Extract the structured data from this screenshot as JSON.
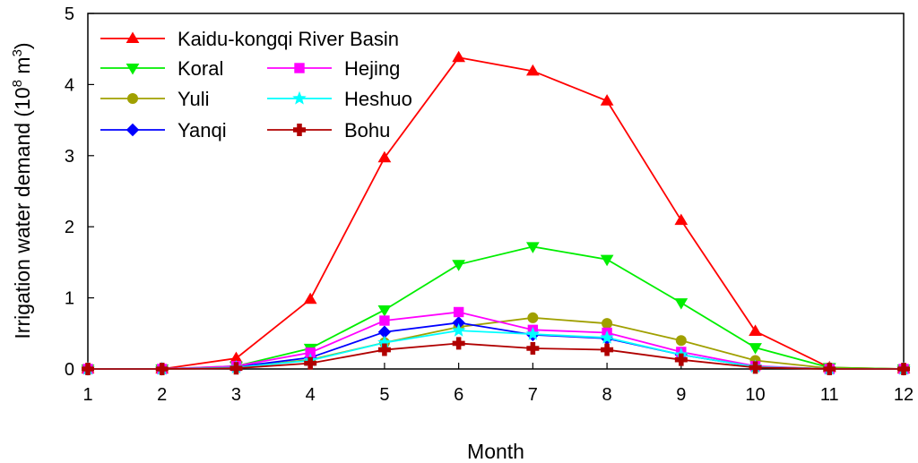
{
  "chart_data": {
    "type": "line",
    "title": "",
    "xlabel": "Month",
    "ylabel_main": "Irrigation water demand (10",
    "ylabel_exp1": "8",
    "ylabel_unit": " m",
    "ylabel_exp2": "3",
    "ylabel_close": ")",
    "xlim": [
      1,
      12
    ],
    "ylim": [
      0,
      5
    ],
    "x_ticks": [
      1,
      2,
      3,
      4,
      5,
      6,
      7,
      8,
      9,
      10,
      11,
      12
    ],
    "y_ticks": [
      0,
      1,
      2,
      3,
      4,
      5
    ],
    "x": [
      1,
      2,
      3,
      4,
      5,
      6,
      7,
      8,
      9,
      10,
      11,
      12
    ],
    "legend_position": "top-left",
    "series": [
      {
        "name": "Kaidu-kongqi River Basin",
        "color": "#ff0000",
        "marker": "triangle-up",
        "values": [
          0,
          0,
          0.15,
          0.98,
          2.97,
          4.38,
          4.19,
          3.77,
          2.09,
          0.53,
          0.02,
          0
        ]
      },
      {
        "name": "Koral",
        "color": "#00ee00",
        "marker": "triangle-down",
        "values": [
          0,
          0,
          0.04,
          0.29,
          0.83,
          1.47,
          1.72,
          1.54,
          0.93,
          0.3,
          0.02,
          0
        ]
      },
      {
        "name": "Yuli",
        "color": "#a0a000",
        "marker": "circle",
        "values": [
          0,
          0,
          0.02,
          0.13,
          0.37,
          0.59,
          0.72,
          0.64,
          0.4,
          0.12,
          0.01,
          0
        ]
      },
      {
        "name": "Yanqi",
        "color": "#0000ff",
        "marker": "diamond",
        "values": [
          0,
          0,
          0.03,
          0.16,
          0.52,
          0.65,
          0.48,
          0.43,
          0.2,
          0.03,
          0,
          0
        ]
      },
      {
        "name": "Hejing",
        "color": "#ff00ff",
        "marker": "square",
        "values": [
          0,
          0,
          0.04,
          0.23,
          0.68,
          0.8,
          0.55,
          0.51,
          0.24,
          0.04,
          0,
          0
        ]
      },
      {
        "name": "Heshuo",
        "color": "#00ffff",
        "marker": "star",
        "values": [
          0,
          0,
          0.02,
          0.12,
          0.37,
          0.54,
          0.49,
          0.44,
          0.2,
          0.03,
          0,
          0
        ]
      },
      {
        "name": "Bohu",
        "color": "#b00000",
        "marker": "plus",
        "values": [
          0,
          0,
          0.01,
          0.08,
          0.27,
          0.36,
          0.29,
          0.27,
          0.13,
          0.02,
          0,
          0
        ]
      }
    ],
    "legend_layout": [
      {
        "series": 0,
        "col": 0,
        "row": 0
      },
      {
        "series": 1,
        "col": 0,
        "row": 1
      },
      {
        "series": 4,
        "col": 1,
        "row": 1
      },
      {
        "series": 2,
        "col": 0,
        "row": 2
      },
      {
        "series": 5,
        "col": 1,
        "row": 2
      },
      {
        "series": 3,
        "col": 0,
        "row": 3
      },
      {
        "series": 6,
        "col": 1,
        "row": 3
      }
    ]
  }
}
